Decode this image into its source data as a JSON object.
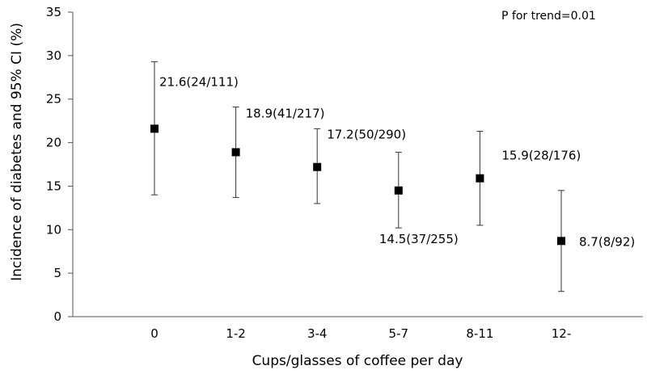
{
  "chart_data": {
    "type": "scatter",
    "xlabel": "Cups/glasses of coffee per day",
    "ylabel": "Incidence of diabetes and 95% CI (%)",
    "annotation": "P  for trend=0.01",
    "ylim": [
      0,
      35
    ],
    "yticks": [
      0,
      5,
      10,
      15,
      20,
      25,
      30,
      35
    ],
    "categories": [
      "0",
      "1-2",
      "3-4",
      "5-7",
      "8-11",
      "12-"
    ],
    "values": [
      21.6,
      18.9,
      17.2,
      14.5,
      15.9,
      8.7
    ],
    "ci_lower": [
      14.0,
      13.7,
      13.0,
      10.2,
      10.5,
      2.9
    ],
    "ci_upper": [
      29.3,
      24.1,
      21.6,
      18.9,
      21.3,
      14.5
    ],
    "point_labels": [
      "21.6(24/111)",
      "18.9(41/217)",
      "17.2(50/290)",
      "14.5(37/255)",
      "15.9(28/176)",
      "8.7(8/92)"
    ],
    "marker": "square",
    "color": "#000000",
    "grid": false
  }
}
